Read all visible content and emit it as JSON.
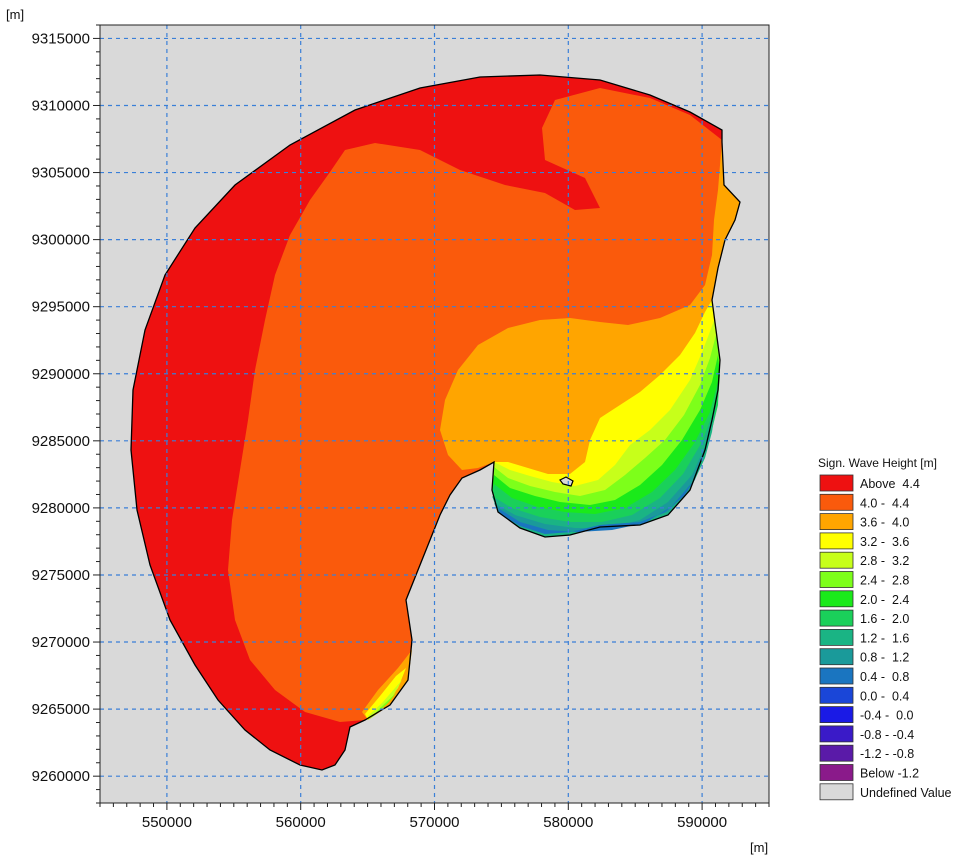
{
  "chart_data": {
    "type": "heatmap",
    "x_unit": "[m]",
    "y_unit": "[m]",
    "xlim": [
      545000,
      595000
    ],
    "ylim": [
      9258000,
      9316000
    ],
    "grid": true,
    "x_ticks": [
      550000,
      560000,
      570000,
      580000,
      590000
    ],
    "x_tick_labels": [
      "550000",
      "560000",
      "570000",
      "580000",
      "590000"
    ],
    "y_ticks": [
      9260000,
      9265000,
      9270000,
      9275000,
      9280000,
      9285000,
      9290000,
      9295000,
      9300000,
      9305000,
      9310000,
      9315000
    ],
    "y_tick_labels": [
      "9260000",
      "9265000",
      "9270000",
      "9275000",
      "9280000",
      "9285000",
      "9290000",
      "9295000",
      "9300000",
      "9305000",
      "9310000",
      "9315000"
    ],
    "legend": {
      "title": "Sign. Wave Height [m]",
      "placement": "right",
      "entries": [
        {
          "label": "Above  4.4",
          "color": "#ee1111"
        },
        {
          "label": "4.0 -  4.4",
          "color": "#fa5a0c"
        },
        {
          "label": "3.6 -  4.0",
          "color": "#ffa500"
        },
        {
          "label": "3.2 -  3.6",
          "color": "#ffff00"
        },
        {
          "label": "2.8 -  3.2",
          "color": "#c7ff1a"
        },
        {
          "label": "2.4 -  2.8",
          "color": "#7dff1a"
        },
        {
          "label": "2.0 -  2.4",
          "color": "#1aea1a"
        },
        {
          "label": "1.6 -  2.0",
          "color": "#1ad05a"
        },
        {
          "label": "1.2 -  1.6",
          "color": "#1ab484"
        },
        {
          "label": "0.8 -  1.2",
          "color": "#1a9a9a"
        },
        {
          "label": "0.4 -  0.8",
          "color": "#1a75c0"
        },
        {
          "label": "0.0 -  0.4",
          "color": "#1a46d8"
        },
        {
          "label": "-0.4 -  0.0",
          "color": "#1a1ae6"
        },
        {
          "label": "-0.8 - -0.4",
          "color": "#3a1ac8"
        },
        {
          "label": "-1.2 - -0.8",
          "color": "#5a1aa8"
        },
        {
          "label": "Below -1.2",
          "color": "#8a1a8a"
        },
        {
          "label": "Undefined Value",
          "color": "#d9d9d9"
        }
      ]
    },
    "background_color": "#d9d9d9",
    "grid_color": "#3a7fd8"
  }
}
